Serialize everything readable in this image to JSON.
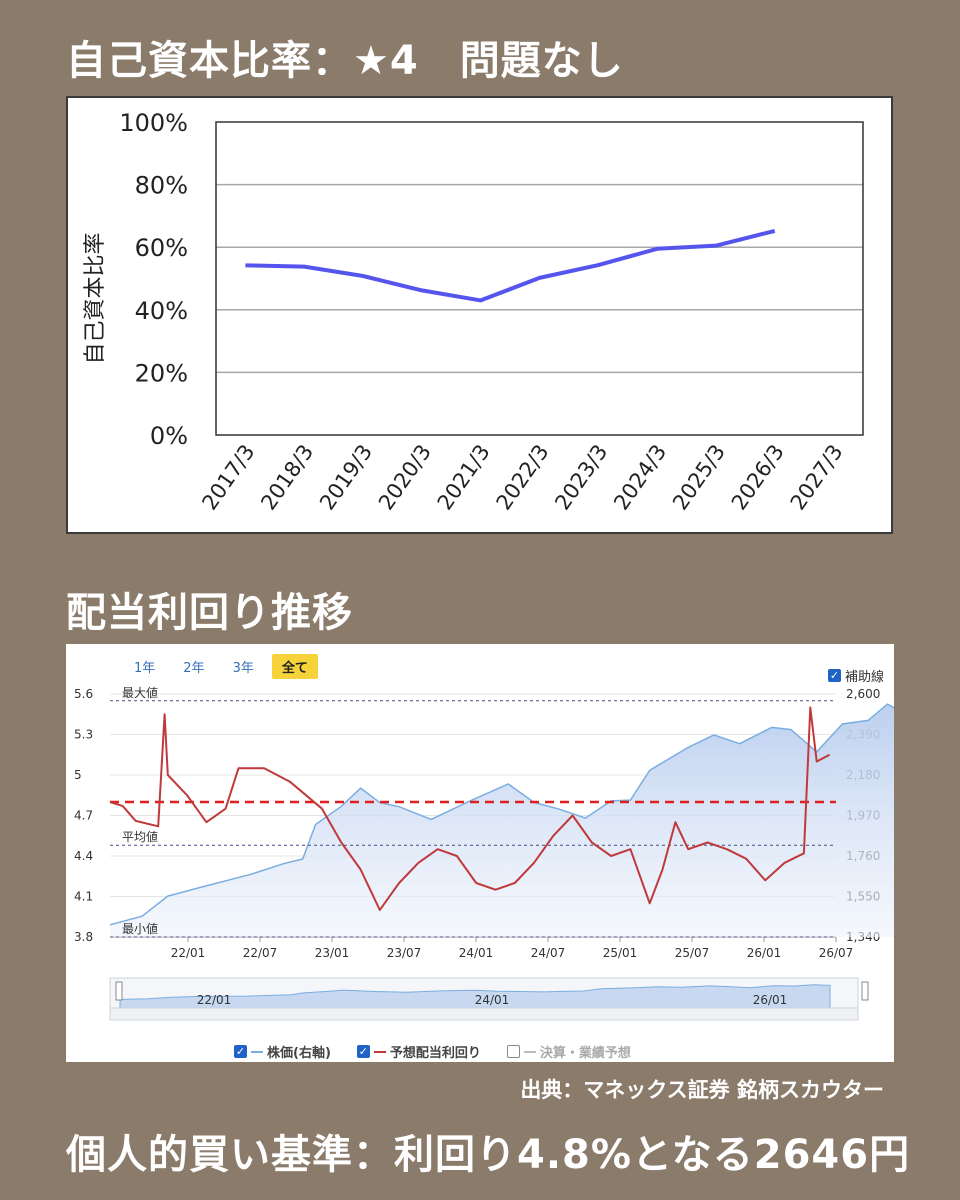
{
  "headings": {
    "equity": "自己資本比率：★4　問題なし",
    "yield": "配当利回り推移",
    "criteria": "個人的買い基準：利回り4.8%となる2646円"
  },
  "source": "出典：マネックス証券 銘柄スカウター",
  "chart_data": [
    {
      "type": "line",
      "title": "",
      "ylabel": "自己資本比率",
      "categories": [
        "2017/3",
        "2018/3",
        "2019/3",
        "2020/3",
        "2021/3",
        "2022/3",
        "2023/3",
        "2024/3",
        "2025/3",
        "2026/3",
        "2027/3"
      ],
      "series": [
        {
          "values": [
            54.2,
            53.8,
            50.8,
            46.2,
            43.0,
            50.2,
            54.3,
            59.5,
            60.5,
            65.2,
            null
          ]
        }
      ],
      "ylim": [
        0,
        100
      ],
      "yticks": [
        "0%",
        "20%",
        "40%",
        "60%",
        "80%",
        "100%"
      ],
      "grid": true,
      "line_color": "#5555ee"
    },
    {
      "type": "line",
      "tabs": [
        "1年",
        "2年",
        "3年",
        "全て"
      ],
      "active_tab": "全て",
      "aux_label": "補助線",
      "left_axis": {
        "ticks": [
          "5.6",
          "5.3",
          "5",
          "4.7",
          "4.4",
          "4.1",
          "3.8"
        ],
        "ylim": [
          3.8,
          5.6
        ]
      },
      "right_axis": {
        "ticks": [
          "2,600",
          "2,390",
          "2,180",
          "1,970",
          "1,760",
          "1,550",
          "1,340"
        ],
        "ylim": [
          1340,
          2600
        ]
      },
      "x_ticks": [
        "22/01",
        "22/07",
        "23/01",
        "23/07",
        "24/01",
        "24/07",
        "25/01",
        "25/07",
        "26/01",
        "26/07"
      ],
      "navigator_ticks": [
        "22/01",
        "24/01",
        "26/01"
      ],
      "reference_lines": {
        "max_label": "最大値",
        "avg_label": "平均値",
        "min_label": "最小値",
        "max": 5.55,
        "avg": 4.48,
        "min": 3.8,
        "target": 4.8
      },
      "series": [
        {
          "name": "株価(右軸)",
          "axis": "right",
          "color": "#7aaee0",
          "keypoints": [
            [
              0,
              1380
            ],
            [
              0.05,
              1440
            ],
            [
              0.09,
              1560
            ],
            [
              0.14,
              1620
            ],
            [
              0.22,
              1650
            ],
            [
              0.27,
              1720
            ],
            [
              0.3,
              1760
            ],
            [
              0.32,
              1900
            ],
            [
              0.36,
              2010
            ],
            [
              0.39,
              2120
            ],
            [
              0.42,
              2060
            ],
            [
              0.45,
              2000
            ],
            [
              0.5,
              1950
            ],
            [
              0.56,
              2060
            ],
            [
              0.62,
              2110
            ],
            [
              0.66,
              2030
            ],
            [
              0.7,
              2010
            ],
            [
              0.74,
              1980
            ],
            [
              0.78,
              2030
            ],
            [
              0.81,
              2050
            ],
            [
              0.84,
              2220
            ],
            [
              0.9,
              2300
            ],
            [
              0.94,
              2380
            ],
            [
              0.98,
              2350
            ],
            [
              1.03,
              2450
            ],
            [
              1.06,
              2400
            ],
            [
              1.1,
              2300
            ],
            [
              1.14,
              2460
            ],
            [
              1.18,
              2440
            ],
            [
              1.21,
              2540
            ],
            [
              1.24,
              2500
            ]
          ]
        },
        {
          "name": "予想配当利回り",
          "axis": "left",
          "color": "#c0393b",
          "keypoints": [
            [
              0,
              4.8
            ],
            [
              0.02,
              4.77
            ],
            [
              0.04,
              4.66
            ],
            [
              0.075,
              4.62
            ],
            [
              0.085,
              5.45
            ],
            [
              0.09,
              5.0
            ],
            [
              0.12,
              4.85
            ],
            [
              0.15,
              4.65
            ],
            [
              0.18,
              4.75
            ],
            [
              0.2,
              5.05
            ],
            [
              0.24,
              5.05
            ],
            [
              0.28,
              4.95
            ],
            [
              0.33,
              4.75
            ],
            [
              0.36,
              4.5
            ],
            [
              0.39,
              4.3
            ],
            [
              0.42,
              4.0
            ],
            [
              0.45,
              4.2
            ],
            [
              0.48,
              4.35
            ],
            [
              0.51,
              4.45
            ],
            [
              0.54,
              4.4
            ],
            [
              0.57,
              4.2
            ],
            [
              0.6,
              4.15
            ],
            [
              0.63,
              4.2
            ],
            [
              0.66,
              4.35
            ],
            [
              0.69,
              4.55
            ],
            [
              0.72,
              4.7
            ],
            [
              0.75,
              4.5
            ],
            [
              0.78,
              4.4
            ],
            [
              0.81,
              4.45
            ],
            [
              0.84,
              4.05
            ],
            [
              0.86,
              4.3
            ],
            [
              0.88,
              4.65
            ],
            [
              0.9,
              4.45
            ],
            [
              0.93,
              4.5
            ],
            [
              0.96,
              4.45
            ],
            [
              0.99,
              4.38
            ],
            [
              1.02,
              4.22
            ],
            [
              1.05,
              4.35
            ],
            [
              1.08,
              4.42
            ],
            [
              1.09,
              5.5
            ],
            [
              1.1,
              5.1
            ],
            [
              1.12,
              5.15
            ]
          ]
        }
      ],
      "legend": [
        {
          "label": "株価(右軸)",
          "checked": true,
          "color": "#7aaee0"
        },
        {
          "label": "予想配当利回り",
          "checked": true,
          "color": "#c0393b"
        },
        {
          "label": "決算・業績予想",
          "checked": false,
          "color": "#bbbbbb"
        }
      ]
    }
  ]
}
